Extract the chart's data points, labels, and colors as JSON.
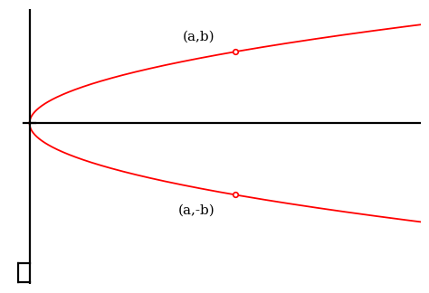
{
  "curve_color": "#FF0000",
  "axis_color": "#000000",
  "background_color": "#FFFFFF",
  "label_top": "(a,b)",
  "label_bottom": "(a,-b)",
  "point_a": 5.0,
  "point_b": 2.0,
  "y_range": [
    -4.5,
    3.2
  ],
  "x_range": [
    -0.3,
    9.5
  ],
  "figsize": [
    4.74,
    3.24
  ],
  "dpi": 100,
  "label_fontsize": 11,
  "axis_linewidth": 1.6,
  "curve_linewidth": 1.3
}
